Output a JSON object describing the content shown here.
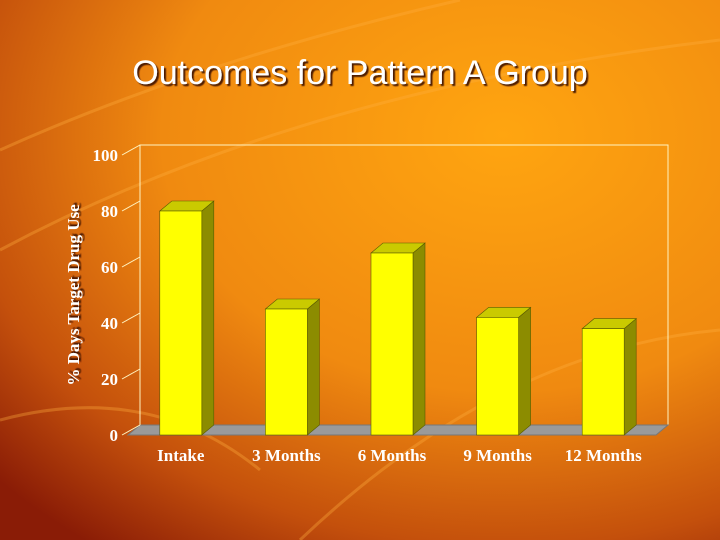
{
  "chart_data": {
    "type": "bar3d",
    "title": "Outcomes for Pattern A Group",
    "y_label": "% Days Target Drug Use",
    "categories": [
      "Intake",
      "3 Months",
      "6 Months",
      "9 Months",
      "12 Months"
    ],
    "values": [
      80,
      45,
      65,
      42,
      38
    ],
    "color": "#ffff00",
    "ylim": [
      0,
      100
    ],
    "yticks": [
      0,
      20,
      40,
      60,
      80,
      100
    ]
  }
}
